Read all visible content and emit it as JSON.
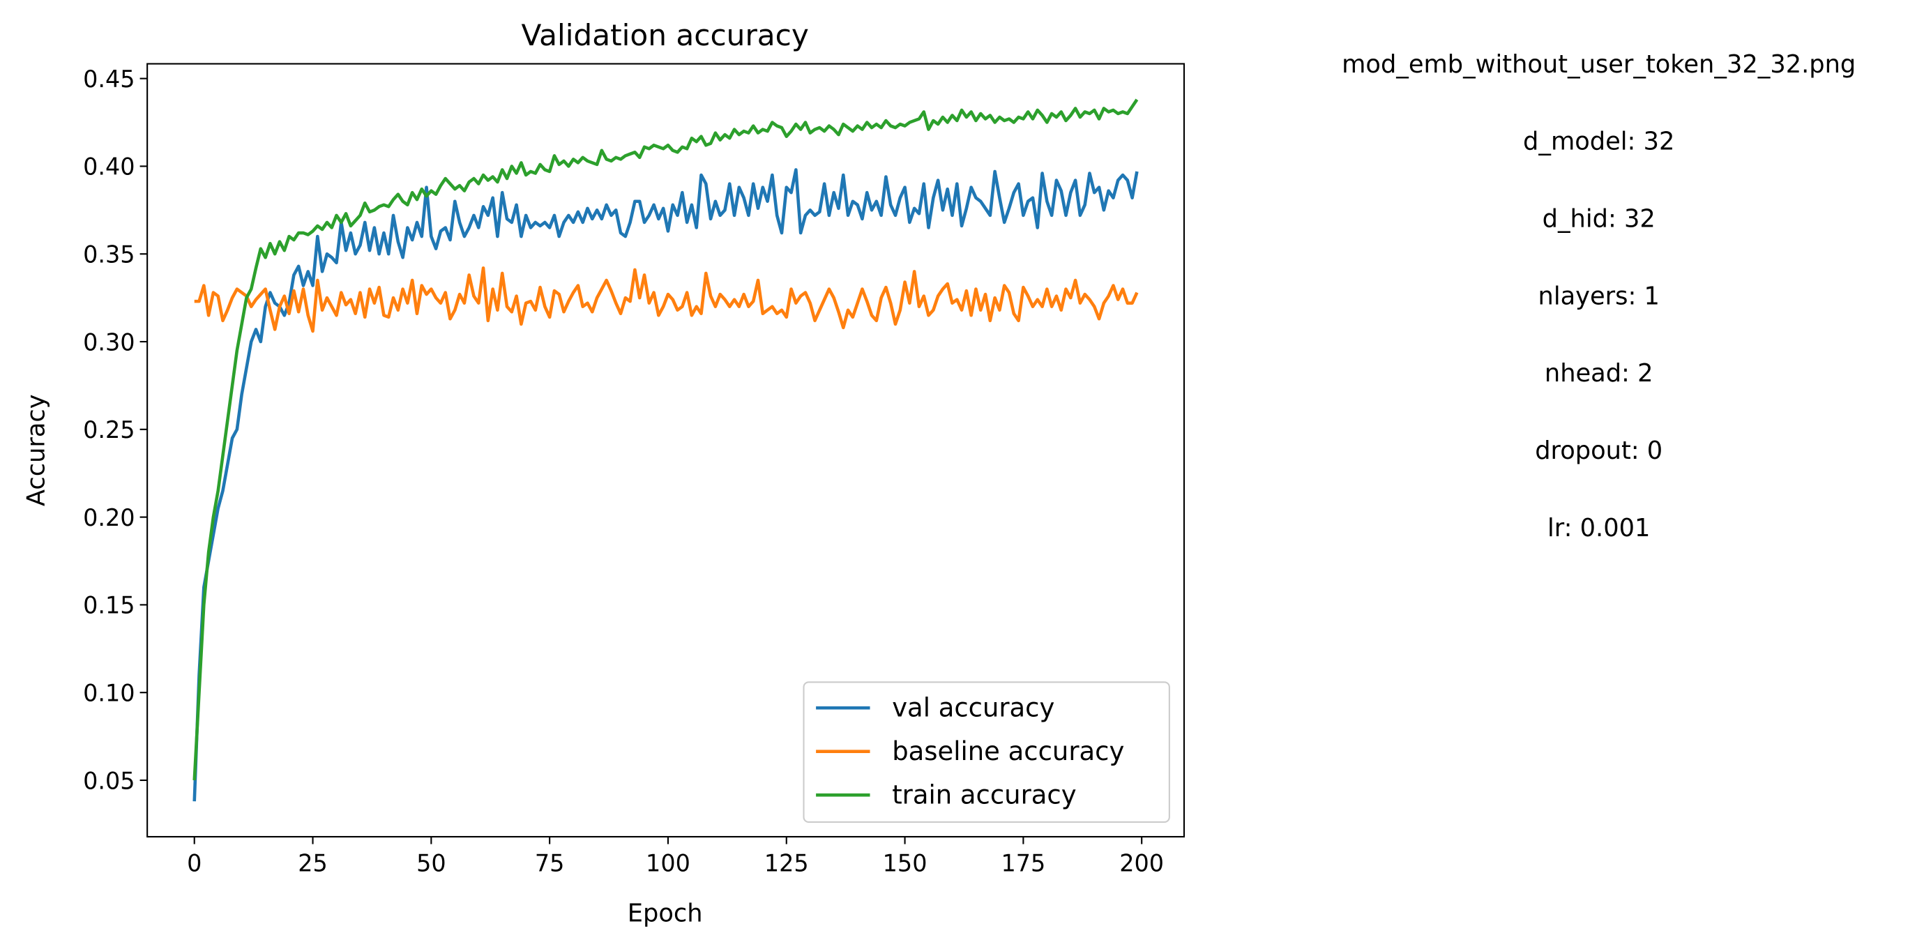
{
  "chart_data": {
    "type": "line",
    "title": "Validation accuracy",
    "xlabel": "Epoch",
    "ylabel": "Accuracy",
    "xlim": [
      -9.95,
      208.95
    ],
    "ylim": [
      0.0178,
      0.4584
    ],
    "xticks": [
      0,
      25,
      50,
      75,
      100,
      125,
      150,
      175,
      200
    ],
    "yticks": [
      0.05,
      {
        "value": 0.1,
        "label": "0.10"
      },
      0.15,
      {
        "value": 0.2,
        "label": "0.20"
      },
      0.25,
      {
        "value": 0.3,
        "label": "0.30"
      },
      0.35,
      {
        "value": 0.4,
        "label": "0.40"
      },
      0.45
    ],
    "grid": false,
    "legend": "lower right",
    "annotations": [
      "mod_emb_without_user_token_32_32.png",
      "d_model: 32",
      "d_hid: 32",
      "nlayers: 1",
      "nhead: 2",
      "dropout: 0",
      "lr: 0.001"
    ],
    "x": [
      0,
      1,
      2,
      3,
      4,
      5,
      6,
      7,
      8,
      9,
      10,
      11,
      12,
      13,
      14,
      15,
      16,
      17,
      18,
      19,
      20,
      21,
      22,
      23,
      24,
      25,
      26,
      27,
      28,
      29,
      30,
      31,
      32,
      33,
      34,
      35,
      36,
      37,
      38,
      39,
      40,
      41,
      42,
      43,
      44,
      45,
      46,
      47,
      48,
      49,
      50,
      51,
      52,
      53,
      54,
      55,
      56,
      57,
      58,
      59,
      60,
      61,
      62,
      63,
      64,
      65,
      66,
      67,
      68,
      69,
      70,
      71,
      72,
      73,
      74,
      75,
      76,
      77,
      78,
      79,
      80,
      81,
      82,
      83,
      84,
      85,
      86,
      87,
      88,
      89,
      90,
      91,
      92,
      93,
      94,
      95,
      96,
      97,
      98,
      99,
      100,
      101,
      102,
      103,
      104,
      105,
      106,
      107,
      108,
      109,
      110,
      111,
      112,
      113,
      114,
      115,
      116,
      117,
      118,
      119,
      120,
      121,
      122,
      123,
      124,
      125,
      126,
      127,
      128,
      129,
      130,
      131,
      132,
      133,
      134,
      135,
      136,
      137,
      138,
      139,
      140,
      141,
      142,
      143,
      144,
      145,
      146,
      147,
      148,
      149,
      150,
      151,
      152,
      153,
      154,
      155,
      156,
      157,
      158,
      159,
      160,
      161,
      162,
      163,
      164,
      165,
      166,
      167,
      168,
      169,
      170,
      171,
      172,
      173,
      174,
      175,
      176,
      177,
      178,
      179,
      180,
      181,
      182,
      183,
      184,
      185,
      186,
      187,
      188,
      189,
      190,
      191,
      192,
      193,
      194,
      195,
      196,
      197,
      198,
      199
    ],
    "series": [
      {
        "name": "val accuracy",
        "color": "#1f77b4",
        "values": [
          0.038,
          0.11,
          0.16,
          0.175,
          0.19,
          0.205,
          0.215,
          0.23,
          0.245,
          0.25,
          0.27,
          0.285,
          0.3,
          0.307,
          0.3,
          0.32,
          0.328,
          0.322,
          0.32,
          0.315,
          0.322,
          0.338,
          0.343,
          0.332,
          0.34,
          0.332,
          0.36,
          0.34,
          0.35,
          0.348,
          0.345,
          0.368,
          0.352,
          0.362,
          0.35,
          0.355,
          0.368,
          0.352,
          0.365,
          0.35,
          0.362,
          0.35,
          0.372,
          0.357,
          0.348,
          0.365,
          0.358,
          0.368,
          0.36,
          0.388,
          0.36,
          0.353,
          0.363,
          0.365,
          0.358,
          0.38,
          0.368,
          0.36,
          0.365,
          0.372,
          0.365,
          0.377,
          0.372,
          0.382,
          0.36,
          0.385,
          0.37,
          0.368,
          0.378,
          0.36,
          0.372,
          0.365,
          0.368,
          0.366,
          0.368,
          0.365,
          0.372,
          0.36,
          0.368,
          0.372,
          0.368,
          0.374,
          0.368,
          0.376,
          0.37,
          0.375,
          0.37,
          0.378,
          0.372,
          0.375,
          0.362,
          0.36,
          0.368,
          0.38,
          0.38,
          0.368,
          0.372,
          0.378,
          0.37,
          0.376,
          0.363,
          0.378,
          0.372,
          0.385,
          0.368,
          0.378,
          0.365,
          0.395,
          0.39,
          0.37,
          0.38,
          0.372,
          0.375,
          0.39,
          0.372,
          0.388,
          0.382,
          0.372,
          0.39,
          0.376,
          0.388,
          0.38,
          0.395,
          0.372,
          0.362,
          0.388,
          0.385,
          0.398,
          0.362,
          0.372,
          0.375,
          0.372,
          0.374,
          0.39,
          0.372,
          0.385,
          0.376,
          0.395,
          0.372,
          0.38,
          0.378,
          0.37,
          0.385,
          0.375,
          0.38,
          0.372,
          0.394,
          0.378,
          0.372,
          0.382,
          0.388,
          0.368,
          0.376,
          0.373,
          0.39,
          0.365,
          0.382,
          0.392,
          0.375,
          0.387,
          0.372,
          0.39,
          0.366,
          0.376,
          0.388,
          0.382,
          0.38,
          0.376,
          0.372,
          0.397,
          0.382,
          0.368,
          0.376,
          0.385,
          0.39,
          0.372,
          0.38,
          0.382,
          0.365,
          0.396,
          0.38,
          0.372,
          0.392,
          0.386,
          0.372,
          0.385,
          0.392,
          0.372,
          0.378,
          0.396,
          0.385,
          0.388,
          0.375,
          0.386,
          0.382,
          0.392,
          0.395,
          0.392,
          0.382,
          0.397
        ]
      },
      {
        "name": "baseline accuracy",
        "color": "#ff7f0e",
        "values": [
          0.323,
          0.323,
          0.332,
          0.315,
          0.328,
          0.326,
          0.312,
          0.318,
          0.325,
          0.33,
          0.328,
          0.326,
          0.32,
          0.324,
          0.327,
          0.33,
          0.318,
          0.307,
          0.32,
          0.326,
          0.316,
          0.329,
          0.317,
          0.33,
          0.315,
          0.306,
          0.335,
          0.318,
          0.325,
          0.32,
          0.315,
          0.328,
          0.321,
          0.324,
          0.316,
          0.328,
          0.314,
          0.33,
          0.322,
          0.331,
          0.315,
          0.314,
          0.325,
          0.318,
          0.33,
          0.322,
          0.335,
          0.316,
          0.332,
          0.327,
          0.33,
          0.325,
          0.322,
          0.328,
          0.313,
          0.318,
          0.327,
          0.322,
          0.338,
          0.326,
          0.322,
          0.342,
          0.312,
          0.33,
          0.318,
          0.339,
          0.32,
          0.317,
          0.326,
          0.31,
          0.322,
          0.323,
          0.318,
          0.331,
          0.32,
          0.314,
          0.329,
          0.327,
          0.317,
          0.323,
          0.328,
          0.332,
          0.32,
          0.322,
          0.317,
          0.325,
          0.33,
          0.335,
          0.329,
          0.322,
          0.316,
          0.325,
          0.323,
          0.341,
          0.325,
          0.338,
          0.322,
          0.328,
          0.315,
          0.32,
          0.327,
          0.324,
          0.318,
          0.32,
          0.328,
          0.315,
          0.32,
          0.316,
          0.339,
          0.326,
          0.32,
          0.327,
          0.324,
          0.32,
          0.324,
          0.32,
          0.327,
          0.32,
          0.323,
          0.335,
          0.316,
          0.318,
          0.32,
          0.316,
          0.318,
          0.314,
          0.33,
          0.322,
          0.326,
          0.328,
          0.322,
          0.312,
          0.318,
          0.324,
          0.33,
          0.325,
          0.317,
          0.308,
          0.318,
          0.314,
          0.322,
          0.33,
          0.323,
          0.315,
          0.312,
          0.325,
          0.331,
          0.322,
          0.31,
          0.318,
          0.334,
          0.322,
          0.34,
          0.32,
          0.326,
          0.315,
          0.318,
          0.326,
          0.33,
          0.333,
          0.322,
          0.324,
          0.318,
          0.329,
          0.315,
          0.33,
          0.318,
          0.327,
          0.312,
          0.325,
          0.318,
          0.332,
          0.328,
          0.316,
          0.312,
          0.331,
          0.326,
          0.32,
          0.324,
          0.32,
          0.33,
          0.32,
          0.326,
          0.318,
          0.33,
          0.325,
          0.335,
          0.322,
          0.327,
          0.324,
          0.32,
          0.313,
          0.322,
          0.326,
          0.332,
          0.324,
          0.33,
          0.322,
          0.322,
          0.328
        ]
      },
      {
        "name": "train accuracy",
        "color": "#2ca02c",
        "values": [
          0.05,
          0.1,
          0.15,
          0.18,
          0.2,
          0.215,
          0.235,
          0.255,
          0.275,
          0.295,
          0.31,
          0.325,
          0.33,
          0.342,
          0.353,
          0.348,
          0.356,
          0.35,
          0.357,
          0.352,
          0.36,
          0.358,
          0.362,
          0.362,
          0.361,
          0.363,
          0.366,
          0.364,
          0.368,
          0.365,
          0.372,
          0.368,
          0.373,
          0.366,
          0.369,
          0.372,
          0.379,
          0.374,
          0.375,
          0.377,
          0.378,
          0.377,
          0.381,
          0.384,
          0.38,
          0.378,
          0.385,
          0.381,
          0.387,
          0.383,
          0.386,
          0.384,
          0.389,
          0.393,
          0.39,
          0.387,
          0.389,
          0.386,
          0.391,
          0.393,
          0.39,
          0.395,
          0.392,
          0.394,
          0.391,
          0.398,
          0.393,
          0.4,
          0.396,
          0.402,
          0.395,
          0.397,
          0.396,
          0.401,
          0.398,
          0.397,
          0.406,
          0.401,
          0.403,
          0.4,
          0.404,
          0.402,
          0.405,
          0.403,
          0.402,
          0.401,
          0.409,
          0.404,
          0.403,
          0.405,
          0.404,
          0.406,
          0.407,
          0.408,
          0.405,
          0.411,
          0.41,
          0.412,
          0.411,
          0.41,
          0.412,
          0.409,
          0.408,
          0.411,
          0.41,
          0.416,
          0.414,
          0.417,
          0.412,
          0.413,
          0.419,
          0.415,
          0.418,
          0.416,
          0.421,
          0.418,
          0.42,
          0.419,
          0.423,
          0.419,
          0.421,
          0.42,
          0.425,
          0.423,
          0.422,
          0.417,
          0.42,
          0.424,
          0.421,
          0.425,
          0.419,
          0.421,
          0.422,
          0.42,
          0.423,
          0.421,
          0.418,
          0.424,
          0.422,
          0.42,
          0.423,
          0.421,
          0.425,
          0.422,
          0.424,
          0.422,
          0.426,
          0.423,
          0.422,
          0.424,
          0.423,
          0.425,
          0.426,
          0.427,
          0.431,
          0.421,
          0.426,
          0.424,
          0.428,
          0.425,
          0.429,
          0.426,
          0.432,
          0.428,
          0.431,
          0.426,
          0.43,
          0.427,
          0.429,
          0.425,
          0.428,
          0.426,
          0.427,
          0.425,
          0.428,
          0.427,
          0.431,
          0.427,
          0.432,
          0.429,
          0.425,
          0.43,
          0.428,
          0.431,
          0.426,
          0.429,
          0.433,
          0.428,
          0.431,
          0.43,
          0.432,
          0.427,
          0.433,
          0.431,
          0.432,
          0.43,
          0.431,
          0.43,
          0.434,
          0.438
        ]
      }
    ]
  }
}
